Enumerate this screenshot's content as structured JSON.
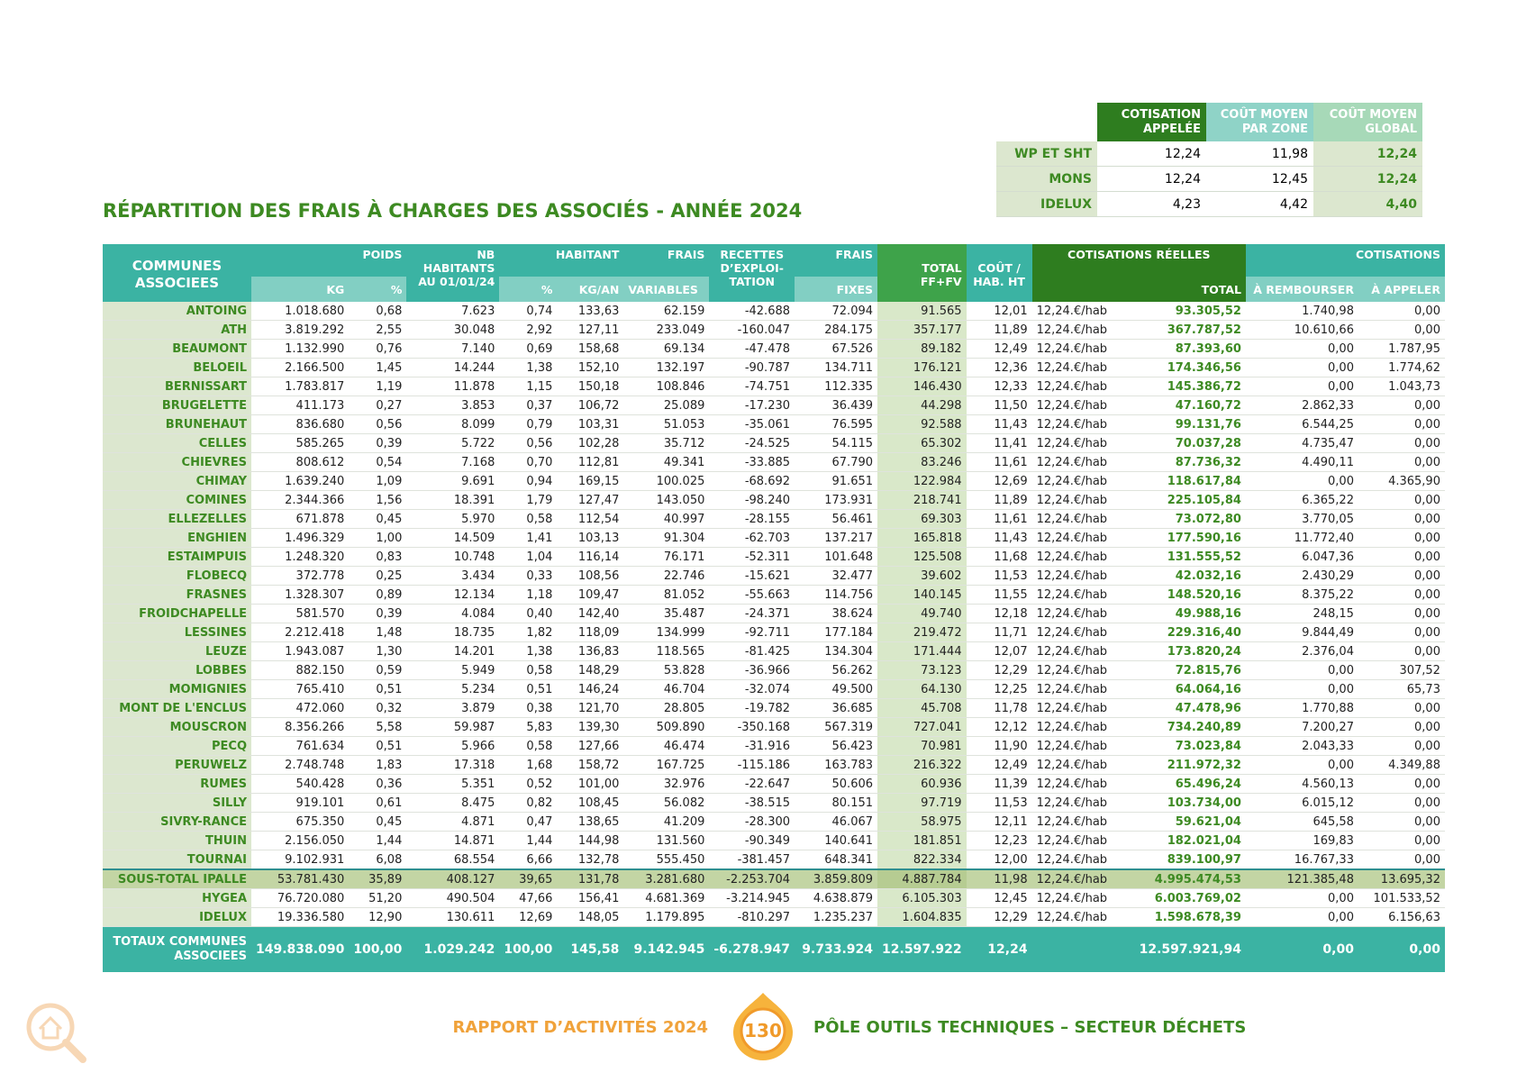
{
  "summary": {
    "headers": [
      "COTISATION APPELÉE",
      "COÛT MOYEN PAR ZONE",
      "COÛT MOYEN GLOBAL"
    ],
    "rows": [
      [
        "WP ET SHT",
        "12,24",
        "11,98",
        "12,24"
      ],
      [
        "MONS",
        "12,24",
        "12,45",
        "12,24"
      ],
      [
        "IDELUX",
        "4,23",
        "4,42",
        "4,40"
      ]
    ]
  },
  "title": "RÉPARTITION DES FRAIS À CHARGES DES ASSOCIÉS - ANNÉE 2024",
  "table": {
    "header": {
      "communes": "COMMUNES ASSOCIEES",
      "poids": "POIDS",
      "kg": "KG",
      "pct": "%",
      "nb": "NB HABITANTS AU 01/01/24",
      "habitant": "HABITANT",
      "pct2": "%",
      "kgan": "KG/AN",
      "frais1": "FRAIS",
      "variables": "VARIABLES",
      "recettes": "RECETTES D’EXPLOI-TATION",
      "frais2": "FRAIS",
      "fixes": "FIXES",
      "total": "TOTAL FF+FV",
      "cout": "COÛT / HAB. HT",
      "cotis_reelles": "COTISATIONS RÉELLES",
      "cotis_total": "TOTAL",
      "cotisations": "COTISATIONS",
      "rembourser": "À REMBOURSER",
      "appeler": "À APPELER"
    },
    "rows": [
      [
        "ANTOING",
        "1.018.680",
        "0,68",
        "7.623",
        "0,74",
        "133,63",
        "62.159",
        "-42.688",
        "72.094",
        "91.565",
        "12,01",
        "12,24.€/hab",
        "93.305,52",
        "1.740,98",
        "0,00"
      ],
      [
        "ATH",
        "3.819.292",
        "2,55",
        "30.048",
        "2,92",
        "127,11",
        "233.049",
        "-160.047",
        "284.175",
        "357.177",
        "11,89",
        "12,24.€/hab",
        "367.787,52",
        "10.610,66",
        "0,00"
      ],
      [
        "BEAUMONT",
        "1.132.990",
        "0,76",
        "7.140",
        "0,69",
        "158,68",
        "69.134",
        "-47.478",
        "67.526",
        "89.182",
        "12,49",
        "12,24.€/hab",
        "87.393,60",
        "0,00",
        "1.787,95"
      ],
      [
        "BELOEIL",
        "2.166.500",
        "1,45",
        "14.244",
        "1,38",
        "152,10",
        "132.197",
        "-90.787",
        "134.711",
        "176.121",
        "12,36",
        "12,24.€/hab",
        "174.346,56",
        "0,00",
        "1.774,62"
      ],
      [
        "BERNISSART",
        "1.783.817",
        "1,19",
        "11.878",
        "1,15",
        "150,18",
        "108.846",
        "-74.751",
        "112.335",
        "146.430",
        "12,33",
        "12,24.€/hab",
        "145.386,72",
        "0,00",
        "1.043,73"
      ],
      [
        "BRUGELETTE",
        "411.173",
        "0,27",
        "3.853",
        "0,37",
        "106,72",
        "25.089",
        "-17.230",
        "36.439",
        "44.298",
        "11,50",
        "12,24.€/hab",
        "47.160,72",
        "2.862,33",
        "0,00"
      ],
      [
        "BRUNEHAUT",
        "836.680",
        "0,56",
        "8.099",
        "0,79",
        "103,31",
        "51.053",
        "-35.061",
        "76.595",
        "92.588",
        "11,43",
        "12,24.€/hab",
        "99.131,76",
        "6.544,25",
        "0,00"
      ],
      [
        "CELLES",
        "585.265",
        "0,39",
        "5.722",
        "0,56",
        "102,28",
        "35.712",
        "-24.525",
        "54.115",
        "65.302",
        "11,41",
        "12,24.€/hab",
        "70.037,28",
        "4.735,47",
        "0,00"
      ],
      [
        "CHIEVRES",
        "808.612",
        "0,54",
        "7.168",
        "0,70",
        "112,81",
        "49.341",
        "-33.885",
        "67.790",
        "83.246",
        "11,61",
        "12,24.€/hab",
        "87.736,32",
        "4.490,11",
        "0,00"
      ],
      [
        "CHIMAY",
        "1.639.240",
        "1,09",
        "9.691",
        "0,94",
        "169,15",
        "100.025",
        "-68.692",
        "91.651",
        "122.984",
        "12,69",
        "12,24.€/hab",
        "118.617,84",
        "0,00",
        "4.365,90"
      ],
      [
        "COMINES",
        "2.344.366",
        "1,56",
        "18.391",
        "1,79",
        "127,47",
        "143.050",
        "-98.240",
        "173.931",
        "218.741",
        "11,89",
        "12,24.€/hab",
        "225.105,84",
        "6.365,22",
        "0,00"
      ],
      [
        "ELLEZELLES",
        "671.878",
        "0,45",
        "5.970",
        "0,58",
        "112,54",
        "40.997",
        "-28.155",
        "56.461",
        "69.303",
        "11,61",
        "12,24.€/hab",
        "73.072,80",
        "3.770,05",
        "0,00"
      ],
      [
        "ENGHIEN",
        "1.496.329",
        "1,00",
        "14.509",
        "1,41",
        "103,13",
        "91.304",
        "-62.703",
        "137.217",
        "165.818",
        "11,43",
        "12,24.€/hab",
        "177.590,16",
        "11.772,40",
        "0,00"
      ],
      [
        "ESTAIMPUIS",
        "1.248.320",
        "0,83",
        "10.748",
        "1,04",
        "116,14",
        "76.171",
        "-52.311",
        "101.648",
        "125.508",
        "11,68",
        "12,24.€/hab",
        "131.555,52",
        "6.047,36",
        "0,00"
      ],
      [
        "FLOBECQ",
        "372.778",
        "0,25",
        "3.434",
        "0,33",
        "108,56",
        "22.746",
        "-15.621",
        "32.477",
        "39.602",
        "11,53",
        "12,24.€/hab",
        "42.032,16",
        "2.430,29",
        "0,00"
      ],
      [
        "FRASNES",
        "1.328.307",
        "0,89",
        "12.134",
        "1,18",
        "109,47",
        "81.052",
        "-55.663",
        "114.756",
        "140.145",
        "11,55",
        "12,24.€/hab",
        "148.520,16",
        "8.375,22",
        "0,00"
      ],
      [
        "FROIDCHAPELLE",
        "581.570",
        "0,39",
        "4.084",
        "0,40",
        "142,40",
        "35.487",
        "-24.371",
        "38.624",
        "49.740",
        "12,18",
        "12,24.€/hab",
        "49.988,16",
        "248,15",
        "0,00"
      ],
      [
        "LESSINES",
        "2.212.418",
        "1,48",
        "18.735",
        "1,82",
        "118,09",
        "134.999",
        "-92.711",
        "177.184",
        "219.472",
        "11,71",
        "12,24.€/hab",
        "229.316,40",
        "9.844,49",
        "0,00"
      ],
      [
        "LEUZE",
        "1.943.087",
        "1,30",
        "14.201",
        "1,38",
        "136,83",
        "118.565",
        "-81.425",
        "134.304",
        "171.444",
        "12,07",
        "12,24.€/hab",
        "173.820,24",
        "2.376,04",
        "0,00"
      ],
      [
        "LOBBES",
        "882.150",
        "0,59",
        "5.949",
        "0,58",
        "148,29",
        "53.828",
        "-36.966",
        "56.262",
        "73.123",
        "12,29",
        "12,24.€/hab",
        "72.815,76",
        "0,00",
        "307,52"
      ],
      [
        "MOMIGNIES",
        "765.410",
        "0,51",
        "5.234",
        "0,51",
        "146,24",
        "46.704",
        "-32.074",
        "49.500",
        "64.130",
        "12,25",
        "12,24.€/hab",
        "64.064,16",
        "0,00",
        "65,73"
      ],
      [
        "MONT DE L'ENCLUS",
        "472.060",
        "0,32",
        "3.879",
        "0,38",
        "121,70",
        "28.805",
        "-19.782",
        "36.685",
        "45.708",
        "11,78",
        "12,24.€/hab",
        "47.478,96",
        "1.770,88",
        "0,00"
      ],
      [
        "MOUSCRON",
        "8.356.266",
        "5,58",
        "59.987",
        "5,83",
        "139,30",
        "509.890",
        "-350.168",
        "567.319",
        "727.041",
        "12,12",
        "12,24.€/hab",
        "734.240,89",
        "7.200,27",
        "0,00"
      ],
      [
        "PECQ",
        "761.634",
        "0,51",
        "5.966",
        "0,58",
        "127,66",
        "46.474",
        "-31.916",
        "56.423",
        "70.981",
        "11,90",
        "12,24.€/hab",
        "73.023,84",
        "2.043,33",
        "0,00"
      ],
      [
        "PERUWELZ",
        "2.748.748",
        "1,83",
        "17.318",
        "1,68",
        "158,72",
        "167.725",
        "-115.186",
        "163.783",
        "216.322",
        "12,49",
        "12,24.€/hab",
        "211.972,32",
        "0,00",
        "4.349,88"
      ],
      [
        "RUMES",
        "540.428",
        "0,36",
        "5.351",
        "0,52",
        "101,00",
        "32.976",
        "-22.647",
        "50.606",
        "60.936",
        "11,39",
        "12,24.€/hab",
        "65.496,24",
        "4.560,13",
        "0,00"
      ],
      [
        "SILLY",
        "919.101",
        "0,61",
        "8.475",
        "0,82",
        "108,45",
        "56.082",
        "-38.515",
        "80.151",
        "97.719",
        "11,53",
        "12,24.€/hab",
        "103.734,00",
        "6.015,12",
        "0,00"
      ],
      [
        "SIVRY-RANCE",
        "675.350",
        "0,45",
        "4.871",
        "0,47",
        "138,65",
        "41.209",
        "-28.300",
        "46.067",
        "58.975",
        "12,11",
        "12,24.€/hab",
        "59.621,04",
        "645,58",
        "0,00"
      ],
      [
        "THUIN",
        "2.156.050",
        "1,44",
        "14.871",
        "1,44",
        "144,98",
        "131.560",
        "-90.349",
        "140.641",
        "181.851",
        "12,23",
        "12,24.€/hab",
        "182.021,04",
        "169,83",
        "0,00"
      ],
      [
        "TOURNAI",
        "9.102.931",
        "6,08",
        "68.554",
        "6,66",
        "132,78",
        "555.450",
        "-381.457",
        "648.341",
        "822.334",
        "12,00",
        "12,24.€/hab",
        "839.100,97",
        "16.767,33",
        "0,00"
      ],
      [
        "SOUS-TOTAL IPALLE",
        "53.781.430",
        "35,89",
        "408.127",
        "39,65",
        "131,78",
        "3.281.680",
        "-2.253.704",
        "3.859.809",
        "4.887.784",
        "11,98",
        "12,24.€/hab",
        "4.995.474,53",
        "121.385,48",
        "13.695,32"
      ],
      [
        "HYGEA",
        "76.720.080",
        "51,20",
        "490.504",
        "47,66",
        "156,41",
        "4.681.369",
        "-3.214.945",
        "4.638.879",
        "6.105.303",
        "12,45",
        "12,24.€/hab",
        "6.003.769,02",
        "0,00",
        "101.533,52"
      ],
      [
        "IDELUX",
        "19.336.580",
        "12,90",
        "130.611",
        "12,69",
        "148,05",
        "1.179.895",
        "-810.297",
        "1.235.237",
        "1.604.835",
        "12,29",
        "12,24.€/hab",
        "1.598.678,39",
        "0,00",
        "6.156,63"
      ]
    ],
    "totals": {
      "values": [
        "TOTAUX COMMUNES ASSOCIEES",
        "149.838.090",
        "100,00",
        "1.029.242",
        "100,00",
        "145,58",
        "9.142.945",
        "-6.278.947",
        "9.733.924",
        "12.597.922",
        "12,24"
      ],
      "cotisations": [
        "12.597.921,94",
        "0,00",
        "0,00"
      ]
    }
  },
  "footer": {
    "report": "RAPPORT D’ACTIVITÉS",
    "year": "2024",
    "page": "130",
    "section": "PÔLE OUTILS TECHNIQUES – SECTEUR DÉCHETS"
  }
}
